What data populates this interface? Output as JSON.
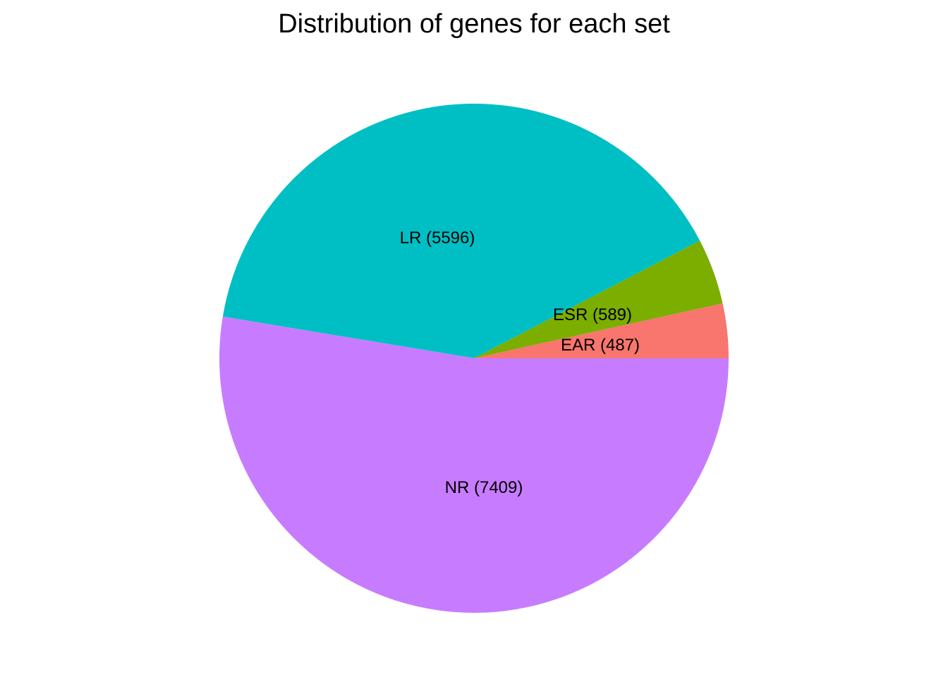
{
  "chart_data": {
    "type": "pie",
    "title": "Distribution of genes for each set",
    "slices": [
      {
        "label": "EAR (487)",
        "value": 487,
        "color": "#F8766D"
      },
      {
        "label": "ESR (589)",
        "value": 589,
        "color": "#7CAE00"
      },
      {
        "label": "LR (5596)",
        "value": 5596,
        "color": "#00BFC4"
      },
      {
        "label": "NR (7409)",
        "value": 7409,
        "color": "#C77CFF"
      }
    ],
    "start_angle": "3 o'clock",
    "direction": "counterclockwise",
    "legend": "none"
  }
}
